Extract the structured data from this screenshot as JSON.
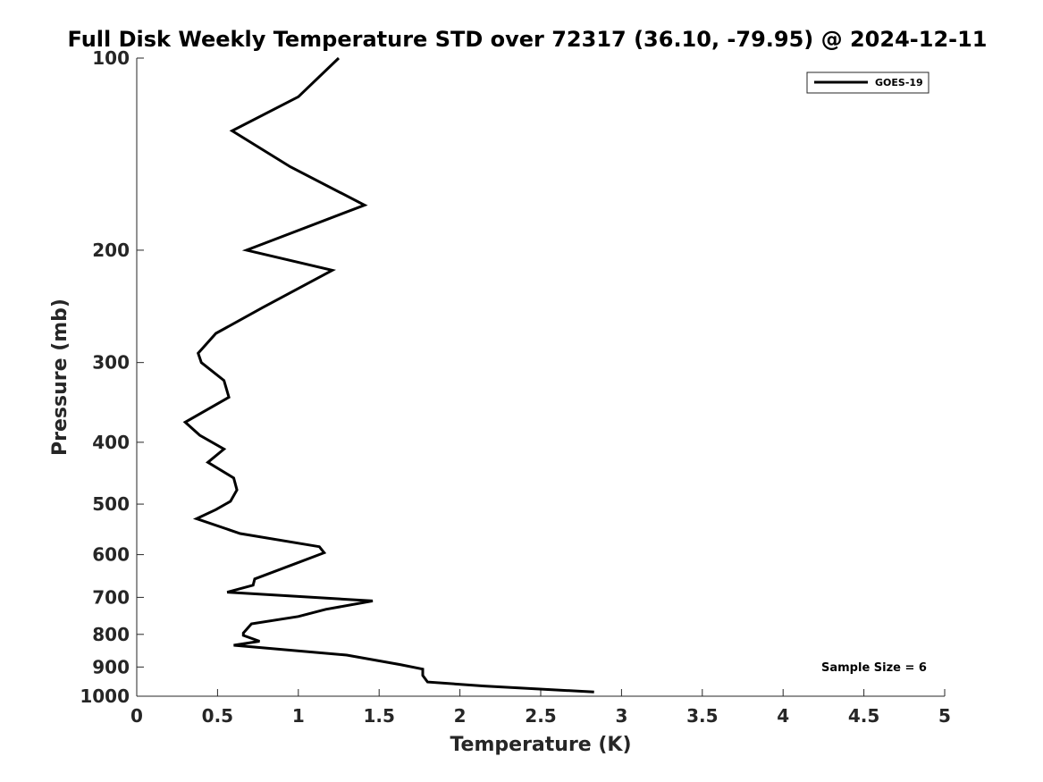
{
  "chart_data": {
    "type": "line",
    "title": "Full Disk Weekly Temperature STD over 72317 (36.10, -79.95) @ 2024-12-11",
    "xlabel": "Temperature (K)",
    "ylabel": "Pressure (mb)",
    "xlim": [
      0,
      5
    ],
    "ylim": [
      100,
      1000
    ],
    "y_scale": "log",
    "y_reversed": true,
    "grid": false,
    "legend_position": "top-right",
    "x_ticks": [
      0,
      0.5,
      1,
      1.5,
      2,
      2.5,
      3,
      3.5,
      4,
      4.5,
      5
    ],
    "x_tick_labels": [
      "0",
      "0.5",
      "1",
      "1.5",
      "2",
      "2.5",
      "3",
      "3.5",
      "4",
      "4.5",
      "5"
    ],
    "y_ticks": [
      100,
      200,
      300,
      400,
      500,
      600,
      700,
      800,
      900,
      1000
    ],
    "y_tick_labels": [
      "100",
      "200",
      "300",
      "400",
      "500",
      "600",
      "700",
      "800",
      "900",
      "1000"
    ],
    "series": [
      {
        "name": "GOES-19",
        "color": "#000000",
        "x": [
          1.25,
          1.0,
          0.59,
          0.95,
          1.41,
          0.68,
          1.21,
          0.78,
          0.49,
          0.38,
          0.4,
          0.54,
          0.57,
          0.3,
          0.39,
          0.54,
          0.44,
          0.6,
          0.62,
          0.58,
          0.49,
          0.37,
          0.64,
          1.13,
          1.16,
          0.95,
          0.73,
          0.72,
          0.56,
          1.46,
          1.17,
          1.0,
          0.71,
          0.66,
          0.66,
          0.76,
          0.6,
          1.3,
          1.63,
          1.77,
          1.77,
          1.8,
          2.15,
          2.83
        ],
        "y": [
          100,
          115,
          130,
          148,
          170,
          200,
          215,
          246,
          270,
          290,
          300,
          320,
          340,
          372,
          390,
          410,
          430,
          455,
          475,
          495,
          510,
          527,
          556,
          583,
          596,
          624,
          655,
          670,
          687,
          709,
          731,
          750,
          770,
          796,
          803,
          820,
          832,
          862,
          892,
          907,
          928,
          950,
          964,
          985
        ]
      }
    ],
    "annotations": [
      "Sample Size = 6"
    ]
  }
}
